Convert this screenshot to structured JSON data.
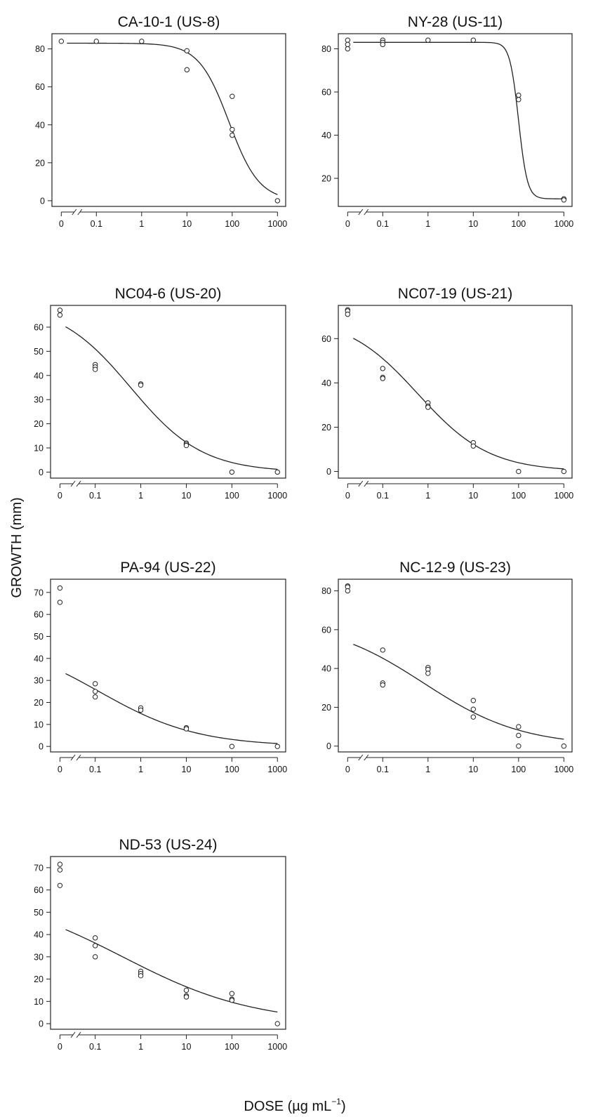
{
  "figure": {
    "ylabel": "GROWTH (mm)",
    "xlabel_main": "DOSE (µg mL",
    "xlabel_sup": "−1",
    "xlabel_close": ")"
  },
  "chart_data": [
    {
      "type": "scatter",
      "title": "CA-10-1 (US-8)",
      "xscale": "log with broken axis at zero",
      "x_ticks": [
        "0",
        "0.1",
        "1",
        "10",
        "100",
        "1000"
      ],
      "y_ticks": [
        0,
        20,
        40,
        60,
        80
      ],
      "ylim": [
        -3,
        88
      ],
      "points": [
        {
          "dose": 0,
          "growth": 84
        },
        {
          "dose": 0.1,
          "growth": 84
        },
        {
          "dose": 1,
          "growth": 84
        },
        {
          "dose": 10,
          "growth": 79
        },
        {
          "dose": 10,
          "growth": 69
        },
        {
          "dose": 100,
          "growth": 55
        },
        {
          "dose": 100,
          "growth": 37.5
        },
        {
          "dose": 100,
          "growth": 34.5
        },
        {
          "dose": 1000,
          "growth": 0
        }
      ],
      "fit": {
        "top": 83,
        "bottom": 0,
        "ec50": 85,
        "hill": 1.3
      }
    },
    {
      "type": "scatter",
      "title": "NY-28 (US-11)",
      "xscale": "log with broken axis at zero",
      "x_ticks": [
        "0",
        "0.1",
        "1",
        "10",
        "100",
        "1000"
      ],
      "y_ticks": [
        20,
        40,
        60,
        80
      ],
      "ylim": [
        7,
        87
      ],
      "points": [
        {
          "dose": 0,
          "growth": 84
        },
        {
          "dose": 0,
          "growth": 82
        },
        {
          "dose": 0,
          "growth": 80
        },
        {
          "dose": 0.1,
          "growth": 84
        },
        {
          "dose": 0.1,
          "growth": 83
        },
        {
          "dose": 0.1,
          "growth": 82
        },
        {
          "dose": 1,
          "growth": 84
        },
        {
          "dose": 10,
          "growth": 84
        },
        {
          "dose": 100,
          "growth": 58.5
        },
        {
          "dose": 100,
          "growth": 56.5
        },
        {
          "dose": 1000,
          "growth": 10.5
        },
        {
          "dose": 1000,
          "growth": 10
        }
      ],
      "fit": {
        "top": 83,
        "bottom": 10.5,
        "ec50": 100,
        "hill": 4.5
      }
    },
    {
      "type": "scatter",
      "title": "NC04-6 (US-20)",
      "xscale": "log with broken axis at zero",
      "x_ticks": [
        "0",
        "0.1",
        "1",
        "10",
        "100",
        "1000"
      ],
      "y_ticks": [
        0,
        10,
        20,
        30,
        40,
        50,
        60
      ],
      "ylim": [
        -2.5,
        69
      ],
      "points": [
        {
          "dose": 0,
          "growth": 67
        },
        {
          "dose": 0,
          "growth": 65
        },
        {
          "dose": 0.1,
          "growth": 44.5
        },
        {
          "dose": 0.1,
          "growth": 43.5
        },
        {
          "dose": 0.1,
          "growth": 42.5
        },
        {
          "dose": 1,
          "growth": 36.5
        },
        {
          "dose": 1,
          "growth": 36
        },
        {
          "dose": 10,
          "growth": 12
        },
        {
          "dose": 10,
          "growth": 11.5
        },
        {
          "dose": 10,
          "growth": 11
        },
        {
          "dose": 100,
          "growth": 0
        },
        {
          "dose": 1000,
          "growth": 0
        }
      ],
      "fit": {
        "top": 70,
        "bottom": 0,
        "ec50": 0.6,
        "hill": 0.55
      }
    },
    {
      "type": "scatter",
      "title": "NC07-19 (US-21)",
      "xscale": "log with broken axis at zero",
      "x_ticks": [
        "0",
        "0.1",
        "1",
        "10",
        "100",
        "1000"
      ],
      "y_ticks": [
        0,
        20,
        40,
        60
      ],
      "ylim": [
        -3,
        75
      ],
      "points": [
        {
          "dose": 0,
          "growth": 73
        },
        {
          "dose": 0,
          "growth": 72.5
        },
        {
          "dose": 0,
          "growth": 71
        },
        {
          "dose": 0.1,
          "growth": 46.5
        },
        {
          "dose": 0.1,
          "growth": 42.5
        },
        {
          "dose": 0.1,
          "growth": 42
        },
        {
          "dose": 1,
          "growth": 31
        },
        {
          "dose": 1,
          "growth": 29.5
        },
        {
          "dose": 1,
          "growth": 29
        },
        {
          "dose": 10,
          "growth": 13
        },
        {
          "dose": 10,
          "growth": 11.5
        },
        {
          "dose": 100,
          "growth": 0
        },
        {
          "dose": 1000,
          "growth": 0
        }
      ],
      "fit": {
        "top": 70,
        "bottom": 0,
        "ec50": 0.6,
        "hill": 0.55
      }
    },
    {
      "type": "scatter",
      "title": "PA-94 (US-22)",
      "xscale": "log with broken axis at zero",
      "x_ticks": [
        "0",
        "0.1",
        "1",
        "10",
        "100",
        "1000"
      ],
      "y_ticks": [
        0,
        10,
        20,
        30,
        40,
        50,
        60,
        70
      ],
      "ylim": [
        -2.5,
        76
      ],
      "points": [
        {
          "dose": 0,
          "growth": 72
        },
        {
          "dose": 0,
          "growth": 65.5
        },
        {
          "dose": 0.1,
          "growth": 28.5
        },
        {
          "dose": 0.1,
          "growth": 25
        },
        {
          "dose": 0.1,
          "growth": 22.5
        },
        {
          "dose": 1,
          "growth": 17.5
        },
        {
          "dose": 1,
          "growth": 16.5
        },
        {
          "dose": 10,
          "growth": 8.5
        },
        {
          "dose": 10,
          "growth": 8
        },
        {
          "dose": 100,
          "growth": 0
        },
        {
          "dose": 1000,
          "growth": 0
        }
      ],
      "fit": {
        "top": 50,
        "bottom": 0,
        "ec50": 0.12,
        "hill": 0.4
      }
    },
    {
      "type": "scatter",
      "title": "NC-12-9 (US-23)",
      "xscale": "log with broken axis at zero",
      "x_ticks": [
        "0",
        "0.1",
        "1",
        "10",
        "100",
        "1000"
      ],
      "y_ticks": [
        0,
        20,
        40,
        60,
        80
      ],
      "ylim": [
        -3,
        86
      ],
      "points": [
        {
          "dose": 0,
          "growth": 82.5
        },
        {
          "dose": 0,
          "growth": 82
        },
        {
          "dose": 0,
          "growth": 80
        },
        {
          "dose": 0.1,
          "growth": 49.5
        },
        {
          "dose": 0.1,
          "growth": 32.5
        },
        {
          "dose": 0.1,
          "growth": 31.5
        },
        {
          "dose": 1,
          "growth": 40.5
        },
        {
          "dose": 1,
          "growth": 39.5
        },
        {
          "dose": 1,
          "growth": 37.5
        },
        {
          "dose": 10,
          "growth": 23.5
        },
        {
          "dose": 10,
          "growth": 19
        },
        {
          "dose": 10,
          "growth": 15
        },
        {
          "dose": 100,
          "growth": 10
        },
        {
          "dose": 100,
          "growth": 5.5
        },
        {
          "dose": 100,
          "growth": 0
        },
        {
          "dose": 1000,
          "growth": 0
        }
      ],
      "fit": {
        "top": 65,
        "bottom": 0,
        "ec50": 0.8,
        "hill": 0.4
      }
    },
    {
      "type": "scatter",
      "title": "ND-53 (US-24)",
      "xscale": "log with broken axis at zero",
      "x_ticks": [
        "0",
        "0.1",
        "1",
        "10",
        "100",
        "1000"
      ],
      "y_ticks": [
        0,
        10,
        20,
        30,
        40,
        50,
        60,
        70
      ],
      "ylim": [
        -2.5,
        75
      ],
      "points": [
        {
          "dose": 0,
          "growth": 71.5
        },
        {
          "dose": 0,
          "growth": 69
        },
        {
          "dose": 0,
          "growth": 62
        },
        {
          "dose": 0.1,
          "growth": 38.5
        },
        {
          "dose": 0.1,
          "growth": 35
        },
        {
          "dose": 0.1,
          "growth": 30
        },
        {
          "dose": 1,
          "growth": 23.5
        },
        {
          "dose": 1,
          "growth": 22.5
        },
        {
          "dose": 1,
          "growth": 21.5
        },
        {
          "dose": 10,
          "growth": 15
        },
        {
          "dose": 10,
          "growth": 12.5
        },
        {
          "dose": 10,
          "growth": 12
        },
        {
          "dose": 100,
          "growth": 13.5
        },
        {
          "dose": 100,
          "growth": 11
        },
        {
          "dose": 100,
          "growth": 10.5
        },
        {
          "dose": 1000,
          "growth": 0
        }
      ],
      "fit": {
        "top": 60,
        "bottom": 0,
        "ec50": 0.4,
        "hill": 0.3
      }
    }
  ]
}
